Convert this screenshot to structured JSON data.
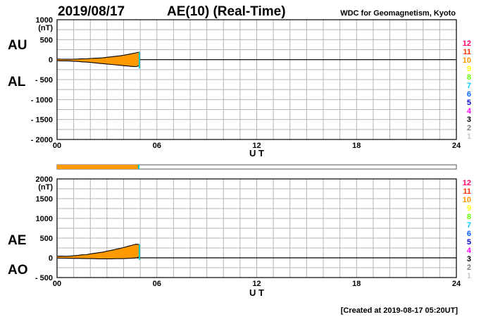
{
  "header": {
    "date": "2019/08/17",
    "title": "AE(10) (Real-Time)",
    "source": "WDC for Geomagnetism, Kyoto"
  },
  "footer": {
    "created": "[Created at 2019-08-17 05:20UT]"
  },
  "colors": {
    "au_fill": "#ff9900",
    "grid": "#b4b4b4",
    "cyan_end": "#00c8c8",
    "station_scale": [
      "#c8c8c8",
      "#808080",
      "#000000",
      "#ff00ff",
      "#0000cc",
      "#0066ff",
      "#00ccff",
      "#66ff00",
      "#ffff00",
      "#ff9900",
      "#ff3300",
      "#ff0066"
    ]
  },
  "chart_data": [
    {
      "type": "area",
      "name": "AU/AL",
      "side_labels": [
        "AU",
        "AL"
      ],
      "ylabel": "(nT)",
      "ylim": [
        -2000,
        1000
      ],
      "yticks": [
        "1000",
        "500",
        "0",
        "- 500",
        "- 1000",
        "- 1500",
        "- 2000"
      ],
      "ytick_values": [
        1000,
        500,
        0,
        -500,
        -1000,
        -1500,
        -2000
      ],
      "xlabel": "U T",
      "xlim": [
        0,
        24
      ],
      "xticks": [
        "00",
        "06",
        "12",
        "18",
        "24"
      ],
      "xtick_values": [
        0,
        6,
        12,
        18,
        24
      ],
      "station_count_labels": [
        "12",
        "11",
        "10",
        "9",
        "8",
        "7",
        "6",
        "5",
        "4",
        "3",
        "2",
        "1"
      ],
      "x": [
        0.0,
        0.25,
        0.5,
        0.75,
        1.0,
        1.25,
        1.5,
        1.75,
        2.0,
        2.25,
        2.5,
        2.75,
        3.0,
        3.25,
        3.5,
        3.75,
        4.0,
        4.25,
        4.5,
        4.75,
        4.95
      ],
      "series": [
        {
          "name": "AU",
          "values": [
            15,
            12,
            10,
            8,
            12,
            15,
            22,
            20,
            30,
            35,
            40,
            45,
            60,
            70,
            85,
            95,
            110,
            130,
            150,
            170,
            190
          ]
        },
        {
          "name": "AL",
          "values": [
            -25,
            -30,
            -30,
            -35,
            -40,
            -45,
            -55,
            -60,
            -70,
            -80,
            -90,
            -100,
            -110,
            -120,
            -130,
            -140,
            -150,
            -160,
            -170,
            -175,
            -150
          ]
        }
      ]
    },
    {
      "type": "area",
      "name": "AE/AO",
      "side_labels": [
        "AE",
        "AO"
      ],
      "ylabel": "(nT)",
      "ylim": [
        -500,
        2000
      ],
      "yticks": [
        "2000",
        "1500",
        "1000",
        "500",
        "0",
        "- 500"
      ],
      "ytick_values": [
        2000,
        1500,
        1000,
        500,
        0,
        -500
      ],
      "xlabel": "U T",
      "xlim": [
        0,
        24
      ],
      "xticks": [
        "00",
        "06",
        "12",
        "18",
        "24"
      ],
      "xtick_values": [
        0,
        6,
        12,
        18,
        24
      ],
      "station_count_labels": [
        "12",
        "11",
        "10",
        "9",
        "8",
        "7",
        "6",
        "5",
        "4",
        "3",
        "2",
        "1"
      ],
      "x": [
        0.0,
        0.25,
        0.5,
        0.75,
        1.0,
        1.25,
        1.5,
        1.75,
        2.0,
        2.25,
        2.5,
        2.75,
        3.0,
        3.25,
        3.5,
        3.75,
        4.0,
        4.25,
        4.5,
        4.75,
        4.95
      ],
      "series": [
        {
          "name": "AE",
          "values": [
            40,
            42,
            40,
            43,
            52,
            60,
            77,
            80,
            100,
            115,
            130,
            145,
            170,
            190,
            215,
            235,
            260,
            290,
            320,
            345,
            340
          ]
        },
        {
          "name": "AO",
          "values": [
            -5,
            -9,
            -10,
            -13,
            -14,
            -15,
            -16,
            -20,
            -20,
            -22,
            -25,
            -27,
            -25,
            -25,
            -22,
            -22,
            -20,
            -15,
            -10,
            -2,
            20
          ]
        }
      ]
    }
  ],
  "station_bar": {
    "filled_until_ut": 4.95,
    "xlim": [
      0,
      24
    ]
  }
}
